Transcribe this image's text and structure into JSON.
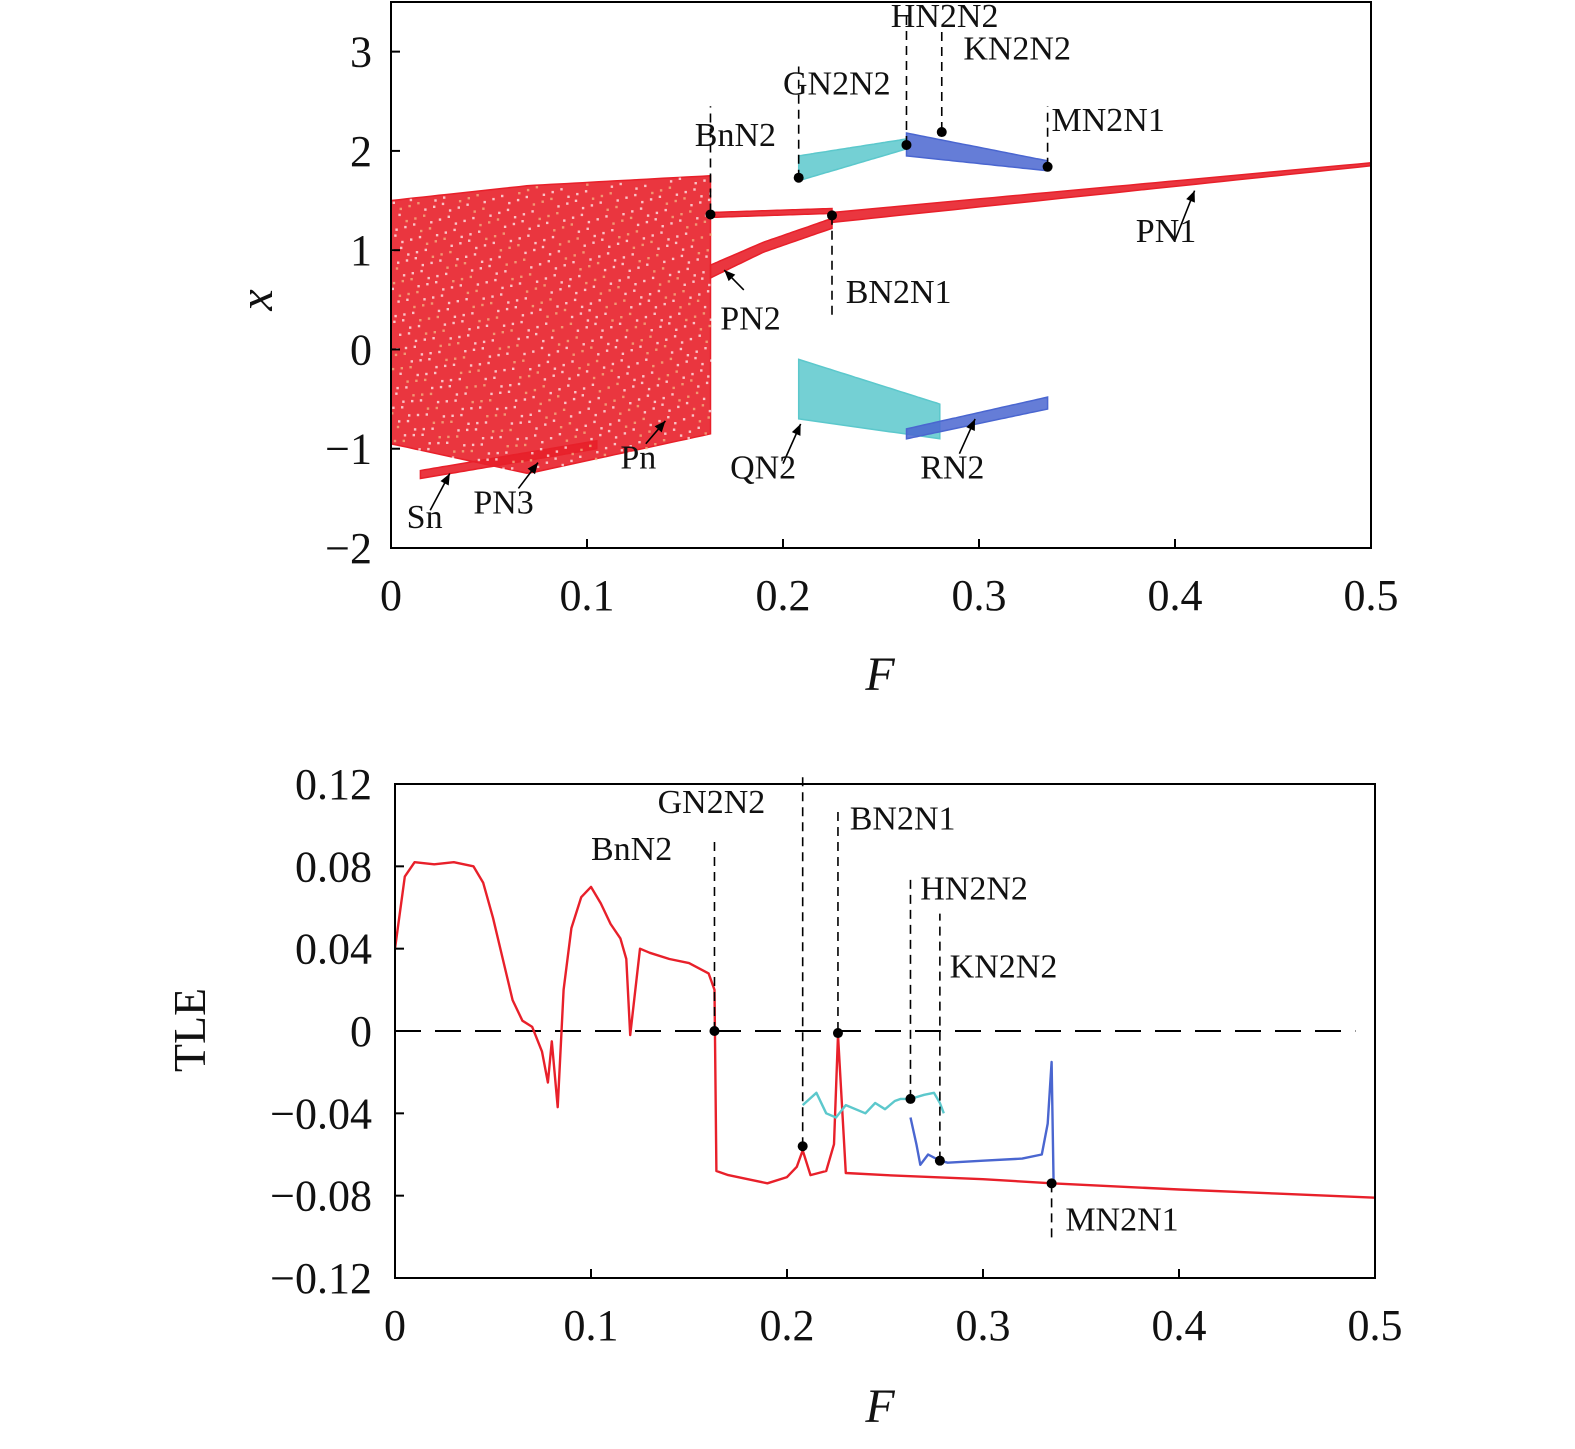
{
  "chart_data": [
    {
      "type": "scatter",
      "title": "",
      "xlabel": "F",
      "ylabel": "x",
      "xlim": [
        0,
        0.5
      ],
      "ylim": [
        -2,
        3.5
      ],
      "xticks": [
        "0",
        "0.1",
        "0.2",
        "0.3",
        "0.4",
        "0.5"
      ],
      "yticks": [
        "−2",
        "−1",
        "0",
        "1",
        "2",
        "3"
      ],
      "grid": false,
      "colors": {
        "chaotic": "#e8202a",
        "period": "#e8202a",
        "teal": "#5cc8cc",
        "blue": "#4a66d0"
      },
      "series": [
        {
          "color": "#e8202a",
          "bands": [
            {
              "x": [
                0.0,
                0.07,
                0.163
              ],
              "ymin": [
                -0.95,
                -1.25,
                -0.85
              ],
              "ymax": [
                1.5,
                1.65,
                1.75
              ]
            },
            {
              "x": [
                0.015,
                0.105
              ],
              "ymin": [
                -1.3,
                -1.0
              ],
              "ymax": [
                -1.22,
                -0.92
              ]
            },
            {
              "x": [
                0.163,
                0.225
              ],
              "ymin": [
                1.33,
                1.37
              ],
              "ymax": [
                1.38,
                1.42
              ]
            },
            {
              "x": [
                0.163,
                0.19,
                0.225
              ],
              "ymin": [
                0.72,
                0.98,
                1.22
              ],
              "ymax": [
                0.85,
                1.08,
                1.32
              ]
            },
            {
              "x": [
                0.225,
                0.5
              ],
              "ymin": [
                1.28,
                1.85
              ],
              "ymax": [
                1.38,
                1.88
              ]
            }
          ]
        },
        {
          "color": "#5cc8cc",
          "bands": [
            {
              "x": [
                0.208,
                0.263
              ],
              "ymin": [
                1.7,
                2.02
              ],
              "ymax": [
                1.95,
                2.12
              ]
            },
            {
              "x": [
                0.208,
                0.28
              ],
              "ymin": [
                -0.7,
                -0.9
              ],
              "ymax": [
                -0.1,
                -0.55
              ]
            }
          ]
        },
        {
          "color": "#4a66d0",
          "bands": [
            {
              "x": [
                0.263,
                0.335
              ],
              "ymin": [
                1.95,
                1.8
              ],
              "ymax": [
                2.18,
                1.9
              ]
            },
            {
              "x": [
                0.263,
                0.335
              ],
              "ymin": [
                -0.9,
                -0.6
              ],
              "ymax": [
                -0.8,
                -0.48
              ]
            }
          ]
        }
      ],
      "vlines": [
        {
          "x": 0.163,
          "y_from": 1.38,
          "y_to": 2.45
        },
        {
          "x": 0.208,
          "y_from": 1.72,
          "y_to": 2.85
        },
        {
          "x": 0.263,
          "y_from": 2.06,
          "y_to": 3.38
        },
        {
          "x": 0.281,
          "y_from": 2.2,
          "y_to": 3.2
        },
        {
          "x": 0.335,
          "y_from": 1.84,
          "y_to": 2.45
        },
        {
          "x": 0.225,
          "y_from": 0.35,
          "y_to": 1.32
        }
      ],
      "markers": [
        {
          "x": 0.163,
          "y": 1.36
        },
        {
          "x": 0.208,
          "y": 1.73
        },
        {
          "x": 0.263,
          "y": 2.06
        },
        {
          "x": 0.281,
          "y": 2.19
        },
        {
          "x": 0.335,
          "y": 1.84
        },
        {
          "x": 0.225,
          "y": 1.35
        }
      ],
      "annotations": [
        {
          "text": "BnN2",
          "x": 0.155,
          "y": 2.05
        },
        {
          "text": "GN2N2",
          "x": 0.2,
          "y": 2.57
        },
        {
          "text": "HN2N2",
          "x": 0.255,
          "y": 3.25
        },
        {
          "text": "KN2N2",
          "x": 0.292,
          "y": 2.92
        },
        {
          "text": "MN2N1",
          "x": 0.337,
          "y": 2.2
        },
        {
          "text": "BN2N1",
          "x": 0.232,
          "y": 0.47
        },
        {
          "text": "PN1",
          "x": 0.38,
          "y": 1.08
        },
        {
          "text": "PN2",
          "x": 0.168,
          "y": 0.2
        },
        {
          "text": "QN2",
          "x": 0.173,
          "y": -1.3
        },
        {
          "text": "RN2",
          "x": 0.27,
          "y": -1.3
        },
        {
          "text": "Pn",
          "x": 0.117,
          "y": -1.2
        },
        {
          "text": "PN3",
          "x": 0.042,
          "y": -1.65
        },
        {
          "text": "Sn",
          "x": 0.008,
          "y": -1.8
        }
      ],
      "arrows": [
        {
          "from": [
            0.4,
            1.1
          ],
          "to": [
            0.41,
            1.6
          ]
        },
        {
          "from": [
            0.18,
            0.6
          ],
          "to": [
            0.17,
            0.8
          ]
        },
        {
          "from": [
            0.2,
            -1.15
          ],
          "to": [
            0.209,
            -0.75
          ]
        },
        {
          "from": [
            0.29,
            -1.05
          ],
          "to": [
            0.298,
            -0.7
          ]
        },
        {
          "from": [
            0.13,
            -0.95
          ],
          "to": [
            0.14,
            -0.72
          ]
        },
        {
          "from": [
            0.065,
            -1.4
          ],
          "to": [
            0.075,
            -1.14
          ]
        },
        {
          "from": [
            0.02,
            -1.62
          ],
          "to": [
            0.03,
            -1.25
          ]
        }
      ]
    },
    {
      "type": "line",
      "title": "",
      "xlabel": "F",
      "ylabel": "TLE",
      "xlim": [
        0,
        0.5
      ],
      "ylim": [
        -0.12,
        0.12
      ],
      "xticks": [
        "0",
        "0.1",
        "0.2",
        "0.3",
        "0.4",
        "0.5"
      ],
      "yticks": [
        "−0.12",
        "−0.08",
        "−0.04",
        "0",
        "0.04",
        "0.08",
        "0.12"
      ],
      "grid": false,
      "zero_line": "dashed",
      "series": [
        {
          "color": "#e8202a",
          "x": [
            0,
            0.005,
            0.01,
            0.02,
            0.03,
            0.04,
            0.045,
            0.05,
            0.055,
            0.06,
            0.065,
            0.07,
            0.075,
            0.078,
            0.08,
            0.083,
            0.086,
            0.09,
            0.095,
            0.1,
            0.105,
            0.11,
            0.115,
            0.118,
            0.12,
            0.125,
            0.13,
            0.14,
            0.15,
            0.16,
            0.163,
            0.164,
            0.17,
            0.18,
            0.19,
            0.2,
            0.205,
            0.208,
            0.212,
            0.22,
            0.224,
            0.226,
            0.23,
            0.25,
            0.3,
            0.335,
            0.4,
            0.45,
            0.5
          ],
          "y": [
            0.04,
            0.075,
            0.082,
            0.081,
            0.082,
            0.08,
            0.072,
            0.055,
            0.035,
            0.015,
            0.005,
            0.002,
            -0.01,
            -0.025,
            -0.005,
            -0.037,
            0.02,
            0.05,
            0.065,
            0.07,
            0.062,
            0.052,
            0.045,
            0.035,
            -0.002,
            0.04,
            0.038,
            0.035,
            0.033,
            0.028,
            0.02,
            -0.068,
            -0.07,
            -0.072,
            -0.074,
            -0.071,
            -0.066,
            -0.058,
            -0.07,
            -0.068,
            -0.055,
            -0.002,
            -0.069,
            -0.07,
            -0.072,
            -0.074,
            -0.077,
            -0.079,
            -0.081
          ]
        },
        {
          "color": "#5cc8cc",
          "x": [
            0.208,
            0.215,
            0.22,
            0.225,
            0.23,
            0.24,
            0.245,
            0.25,
            0.255,
            0.258,
            0.263,
            0.27,
            0.275,
            0.278,
            0.28
          ],
          "y": [
            -0.036,
            -0.03,
            -0.04,
            -0.042,
            -0.036,
            -0.04,
            -0.035,
            -0.038,
            -0.034,
            -0.033,
            -0.033,
            -0.031,
            -0.03,
            -0.035,
            -0.04
          ]
        },
        {
          "color": "#4a66d0",
          "x": [
            0.263,
            0.266,
            0.268,
            0.272,
            0.278,
            0.282,
            0.3,
            0.32,
            0.33,
            0.333,
            0.335,
            0.336
          ],
          "y": [
            -0.042,
            -0.055,
            -0.065,
            -0.06,
            -0.063,
            -0.064,
            -0.063,
            -0.062,
            -0.06,
            -0.045,
            -0.015,
            -0.074
          ]
        }
      ],
      "vlines": [
        {
          "x": 0.163,
          "y_from": -0.0,
          "y_to": 0.092
        },
        {
          "x": 0.208,
          "y_from": -0.056,
          "y_to": 0.124
        },
        {
          "x": 0.226,
          "y_from": -0.0,
          "y_to": 0.109
        },
        {
          "x": 0.263,
          "y_from": -0.033,
          "y_to": 0.075
        },
        {
          "x": 0.278,
          "y_from": -0.063,
          "y_to": 0.057
        },
        {
          "x": 0.335,
          "y_from": -0.074,
          "y_to": -0.103
        }
      ],
      "markers": [
        {
          "x": 0.163,
          "y": 0.0
        },
        {
          "x": 0.208,
          "y": -0.056
        },
        {
          "x": 0.226,
          "y": -0.001
        },
        {
          "x": 0.263,
          "y": -0.033
        },
        {
          "x": 0.278,
          "y": -0.063
        },
        {
          "x": 0.335,
          "y": -0.074
        }
      ],
      "annotations": [
        {
          "text": "BnN2",
          "x": 0.1,
          "y": 0.083
        },
        {
          "text": "GN2N2",
          "x": 0.134,
          "y": 0.106
        },
        {
          "text": "BN2N1",
          "x": 0.232,
          "y": 0.098
        },
        {
          "text": "HN2N2",
          "x": 0.268,
          "y": 0.064
        },
        {
          "text": "KN2N2",
          "x": 0.283,
          "y": 0.026
        },
        {
          "text": "MN2N1",
          "x": 0.342,
          "y": -0.097
        }
      ]
    }
  ]
}
